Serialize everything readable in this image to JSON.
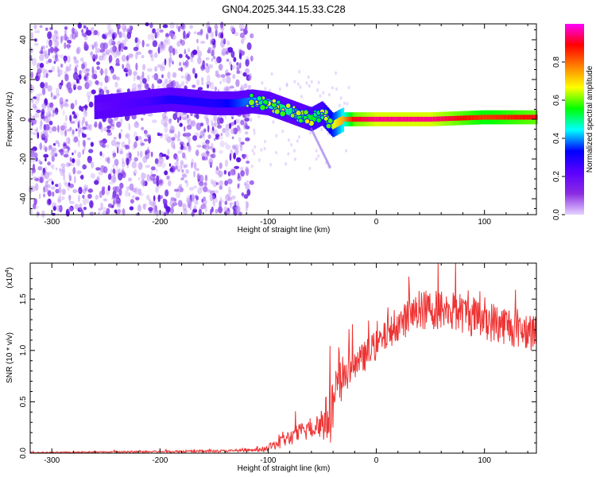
{
  "title": "GN04.2025.344.15.33.C28",
  "chart_data": [
    {
      "type": "heatmap",
      "title": "GN04.2025.344.15.33.C28",
      "xlabel": "Height of straight line (km)",
      "ylabel": "Frequency (Hz)",
      "xlim": [
        -320,
        148
      ],
      "ylim": [
        -48,
        48
      ],
      "xticks": [
        -300,
        -200,
        -100,
        0,
        100
      ],
      "xtick_labels": [
        "-300",
        "-200",
        "-100",
        "0",
        "100"
      ],
      "yticks": [
        -40,
        -20,
        0,
        20,
        40
      ],
      "ytick_labels": [
        "-40",
        "-20",
        "0",
        "20",
        "40"
      ],
      "colorbar": {
        "label": "Normalized spectral amplitude",
        "range": [
          0,
          1
        ],
        "ticks": [
          0.0,
          0.2,
          0.4,
          0.6,
          0.8
        ],
        "tick_labels": [
          "0.0",
          "0.2",
          "0.4",
          "0.6",
          "0.8"
        ],
        "colormap": [
          "#e6d2ff",
          "#8a2be2",
          "#5a00ff",
          "#0000ff",
          "#00ffff",
          "#00ff00",
          "#ffff00",
          "#ff8000",
          "#ff0000",
          "#ff00ff"
        ]
      },
      "noise_region_x": [
        -320,
        -115
      ],
      "signal_track": {
        "x": [
          -260,
          -240,
          -210,
          -190,
          -170,
          -150,
          -130,
          -115,
          -100,
          -90,
          -80,
          -70,
          -60,
          -50,
          -45,
          -40,
          -30,
          -20,
          0,
          50,
          100,
          148
        ],
        "freq": [
          6,
          7,
          9,
          10,
          9,
          8,
          8,
          9,
          8,
          6,
          4,
          2,
          0,
          3,
          0,
          -3,
          0,
          0,
          0,
          0,
          1,
          1
        ],
        "amplitude": [
          0.2,
          0.22,
          0.25,
          0.3,
          0.3,
          0.3,
          0.35,
          0.4,
          0.45,
          0.5,
          0.5,
          0.5,
          0.55,
          0.55,
          0.6,
          0.65,
          0.75,
          0.9,
          0.95,
          0.95,
          0.85,
          0.9
        ]
      }
    },
    {
      "type": "line",
      "xlabel": "Height of straight line (km)",
      "ylabel": "SNR (10 * v/v)",
      "y_scale_label": "(x10",
      "y_scale_exponent": "4",
      "y_scale_suffix": ")",
      "xlim": [
        -320,
        148
      ],
      "ylim": [
        0.0,
        1.85
      ],
      "xticks": [
        -300,
        -200,
        -100,
        0,
        100
      ],
      "xtick_labels": [
        "-300",
        "-200",
        "-100",
        "0",
        "100"
      ],
      "yticks": [
        0.0,
        0.5,
        1.0,
        1.5
      ],
      "ytick_labels": [
        "0.0",
        "0.5",
        "1.0",
        "1.5"
      ],
      "series": [
        {
          "name": "SNR",
          "color": "#ee3333",
          "x": [
            -320,
            -250,
            -200,
            -150,
            -120,
            -105,
            -100,
            -90,
            -80,
            -70,
            -60,
            -50,
            -45,
            -40,
            -35,
            -30,
            -20,
            -10,
            0,
            10,
            20,
            30,
            40,
            50,
            60,
            70,
            80,
            90,
            100,
            110,
            120,
            130,
            140,
            148
          ],
          "mean": [
            0.005,
            0.01,
            0.015,
            0.02,
            0.025,
            0.03,
            0.05,
            0.1,
            0.15,
            0.2,
            0.25,
            0.3,
            0.35,
            0.45,
            0.6,
            0.75,
            0.85,
            0.95,
            1.05,
            1.15,
            1.25,
            1.32,
            1.38,
            1.4,
            1.4,
            1.38,
            1.36,
            1.33,
            1.3,
            1.27,
            1.25,
            1.22,
            1.2,
            1.2
          ],
          "spread": [
            0.005,
            0.008,
            0.01,
            0.012,
            0.012,
            0.02,
            0.03,
            0.06,
            0.08,
            0.1,
            0.12,
            0.18,
            0.25,
            0.35,
            0.3,
            0.2,
            0.15,
            0.15,
            0.15,
            0.15,
            0.15,
            0.18,
            0.2,
            0.2,
            0.2,
            0.2,
            0.2,
            0.2,
            0.2,
            0.2,
            0.2,
            0.2,
            0.2,
            0.2
          ]
        }
      ]
    }
  ]
}
